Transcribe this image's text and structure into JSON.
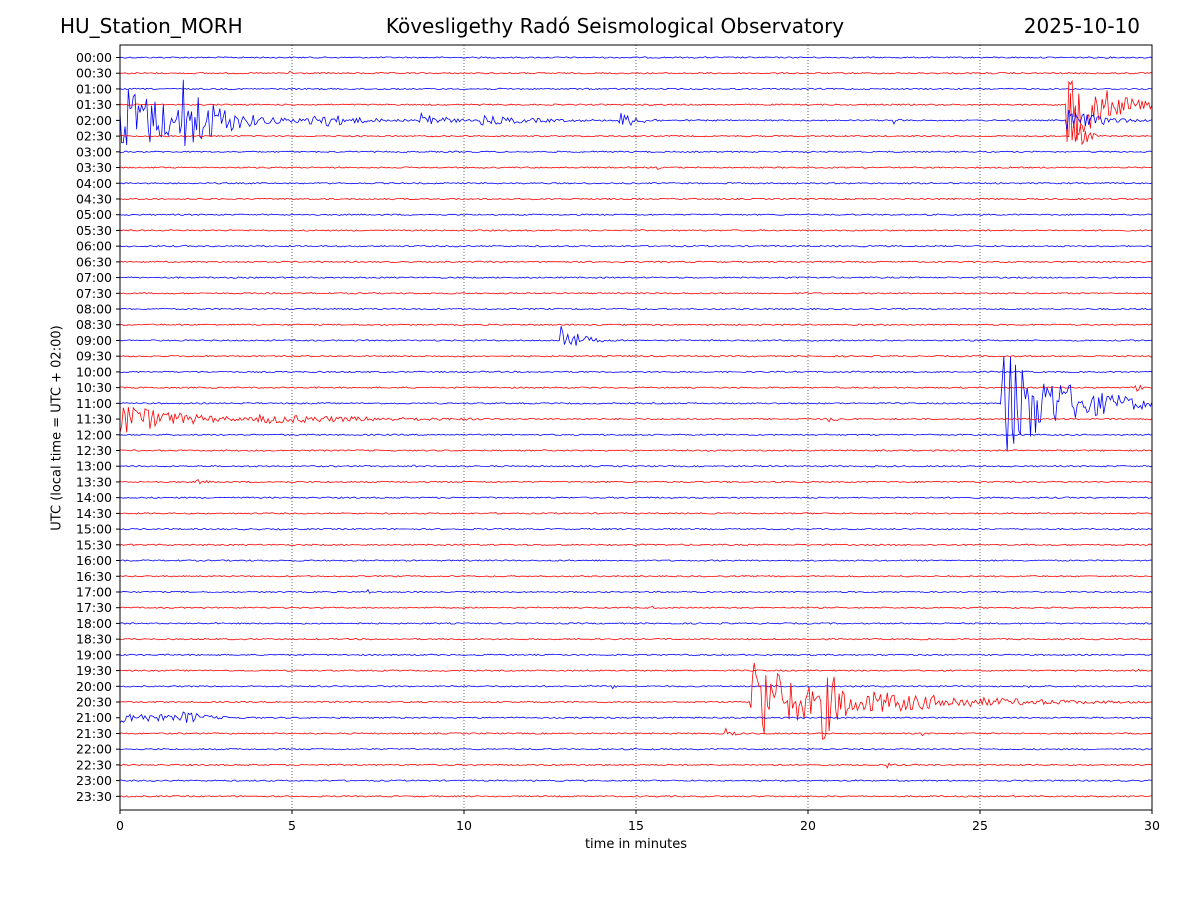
{
  "header": {
    "station": "HU_Station_MORH",
    "title": "Kövesligethy Radó Seismological Observatory",
    "date": "2025-10-10"
  },
  "chart_data": {
    "type": "line",
    "title": "Kövesligethy Radó Seismological Observatory",
    "xlabel": "time in minutes",
    "ylabel": "UTC (local time = UTC + 02:00)",
    "xlim": [
      0,
      30
    ],
    "x_ticks": [
      "0",
      "5",
      "10",
      "15",
      "20",
      "25",
      "30"
    ],
    "grid": "vertical dotted lines at each 5 minutes",
    "trace_colors": [
      "#0000ff",
      "#ff0000"
    ],
    "rows": [
      {
        "label": "00:00",
        "color": "#0000ff",
        "events": []
      },
      {
        "label": "00:30",
        "color": "#ff0000",
        "events": [
          {
            "t": 4.9,
            "amp": 4,
            "dur": 0.3
          }
        ]
      },
      {
        "label": "01:00",
        "color": "#0000ff",
        "events": []
      },
      {
        "label": "01:30",
        "color": "#ff0000",
        "events": [
          {
            "t": 27.5,
            "amp": 50,
            "dur": 2.5
          }
        ]
      },
      {
        "label": "02:00",
        "color": "#0000ff",
        "events": [
          {
            "t": 0.0,
            "amp": 40,
            "dur": 4.5
          },
          {
            "t": 1.8,
            "amp": 45,
            "dur": 2.5
          },
          {
            "t": 5.5,
            "amp": 10,
            "dur": 3
          },
          {
            "t": 8.7,
            "amp": 12,
            "dur": 1.5
          },
          {
            "t": 10.5,
            "amp": 5,
            "dur": 5
          },
          {
            "t": 14.5,
            "amp": 9,
            "dur": 1.5
          },
          {
            "t": 22.5,
            "amp": 6,
            "dur": 0.4
          },
          {
            "t": 27.5,
            "amp": 12,
            "dur": 2.5
          }
        ]
      },
      {
        "label": "02:30",
        "color": "#ff0000",
        "events": [
          {
            "t": 27.6,
            "amp": 55,
            "dur": 0.6
          }
        ]
      },
      {
        "label": "03:00",
        "color": "#0000ff",
        "events": []
      },
      {
        "label": "03:30",
        "color": "#ff0000",
        "events": [
          {
            "t": 15.6,
            "amp": 3,
            "dur": 0.3
          }
        ]
      },
      {
        "label": "04:00",
        "color": "#0000ff",
        "events": []
      },
      {
        "label": "04:30",
        "color": "#ff0000",
        "events": []
      },
      {
        "label": "05:00",
        "color": "#0000ff",
        "events": []
      },
      {
        "label": "05:30",
        "color": "#ff0000",
        "events": []
      },
      {
        "label": "06:00",
        "color": "#0000ff",
        "events": []
      },
      {
        "label": "06:30",
        "color": "#ff0000",
        "events": []
      },
      {
        "label": "07:00",
        "color": "#0000ff",
        "events": []
      },
      {
        "label": "07:30",
        "color": "#ff0000",
        "events": []
      },
      {
        "label": "08:00",
        "color": "#0000ff",
        "events": []
      },
      {
        "label": "08:30",
        "color": "#ff0000",
        "events": []
      },
      {
        "label": "09:00",
        "color": "#0000ff",
        "events": [
          {
            "t": 12.8,
            "amp": 20,
            "dur": 1.2
          }
        ]
      },
      {
        "label": "09:30",
        "color": "#ff0000",
        "events": []
      },
      {
        "label": "10:00",
        "color": "#0000ff",
        "events": []
      },
      {
        "label": "10:30",
        "color": "#ff0000",
        "events": [
          {
            "t": 29.5,
            "amp": 5,
            "dur": 0.5
          }
        ]
      },
      {
        "label": "11:00",
        "color": "#0000ff",
        "events": [
          {
            "t": 25.6,
            "amp": 60,
            "dur": 4.4
          }
        ]
      },
      {
        "label": "11:30",
        "color": "#ff0000",
        "events": [
          {
            "t": 0.0,
            "amp": 18,
            "dur": 4
          },
          {
            "t": 4.0,
            "amp": 5,
            "dur": 10
          },
          {
            "t": 20.5,
            "amp": 4,
            "dur": 1
          }
        ]
      },
      {
        "label": "12:00",
        "color": "#0000ff",
        "events": []
      },
      {
        "label": "12:30",
        "color": "#ff0000",
        "events": [
          {
            "t": 16.4,
            "amp": 4,
            "dur": 0.2
          }
        ]
      },
      {
        "label": "13:00",
        "color": "#0000ff",
        "events": [
          {
            "t": 8.5,
            "amp": 2,
            "dur": 0.5
          },
          {
            "t": 12.2,
            "amp": 2,
            "dur": 0.3
          }
        ]
      },
      {
        "label": "13:30",
        "color": "#ff0000",
        "events": [
          {
            "t": 2.2,
            "amp": 3,
            "dur": 1
          }
        ]
      },
      {
        "label": "14:00",
        "color": "#0000ff",
        "events": []
      },
      {
        "label": "14:30",
        "color": "#ff0000",
        "events": []
      },
      {
        "label": "15:00",
        "color": "#0000ff",
        "events": []
      },
      {
        "label": "15:30",
        "color": "#ff0000",
        "events": []
      },
      {
        "label": "16:00",
        "color": "#0000ff",
        "events": []
      },
      {
        "label": "16:30",
        "color": "#ff0000",
        "events": []
      },
      {
        "label": "17:00",
        "color": "#0000ff",
        "events": [
          {
            "t": 7.2,
            "amp": 4,
            "dur": 0.2
          }
        ]
      },
      {
        "label": "17:30",
        "color": "#ff0000",
        "events": [
          {
            "t": 15.4,
            "amp": 3,
            "dur": 0.4
          }
        ]
      },
      {
        "label": "18:00",
        "color": "#0000ff",
        "events": []
      },
      {
        "label": "18:30",
        "color": "#ff0000",
        "events": []
      },
      {
        "label": "19:00",
        "color": "#0000ff",
        "events": []
      },
      {
        "label": "19:30",
        "color": "#ff0000",
        "events": [
          {
            "t": 29.6,
            "amp": 2,
            "dur": 0.2
          }
        ]
      },
      {
        "label": "20:00",
        "color": "#0000ff",
        "events": [
          {
            "t": 13.6,
            "amp": 5,
            "dur": 0.2
          },
          {
            "t": 14.3,
            "amp": 5,
            "dur": 0.2
          },
          {
            "t": 26.4,
            "amp": 6,
            "dur": 0.2
          }
        ]
      },
      {
        "label": "20:30",
        "color": "#ff0000",
        "events": [
          {
            "t": 18.3,
            "amp": 55,
            "dur": 3.5
          },
          {
            "t": 20.4,
            "amp": 40,
            "dur": 2
          },
          {
            "t": 21.8,
            "amp": 12,
            "dur": 8.2
          }
        ]
      },
      {
        "label": "21:00",
        "color": "#0000ff",
        "events": [
          {
            "t": 0.0,
            "amp": 6,
            "dur": 5
          },
          {
            "t": 1.8,
            "amp": 9,
            "dur": 1.5
          }
        ]
      },
      {
        "label": "21:30",
        "color": "#ff0000",
        "events": [
          {
            "t": 17.6,
            "amp": 6,
            "dur": 0.6
          },
          {
            "t": 23.3,
            "amp": 3,
            "dur": 0.3
          }
        ]
      },
      {
        "label": "22:00",
        "color": "#0000ff",
        "events": []
      },
      {
        "label": "22:30",
        "color": "#ff0000",
        "events": [
          {
            "t": 22.3,
            "amp": 3,
            "dur": 0.6
          }
        ]
      },
      {
        "label": "23:00",
        "color": "#0000ff",
        "events": []
      },
      {
        "label": "23:30",
        "color": "#ff0000",
        "events": []
      }
    ]
  }
}
